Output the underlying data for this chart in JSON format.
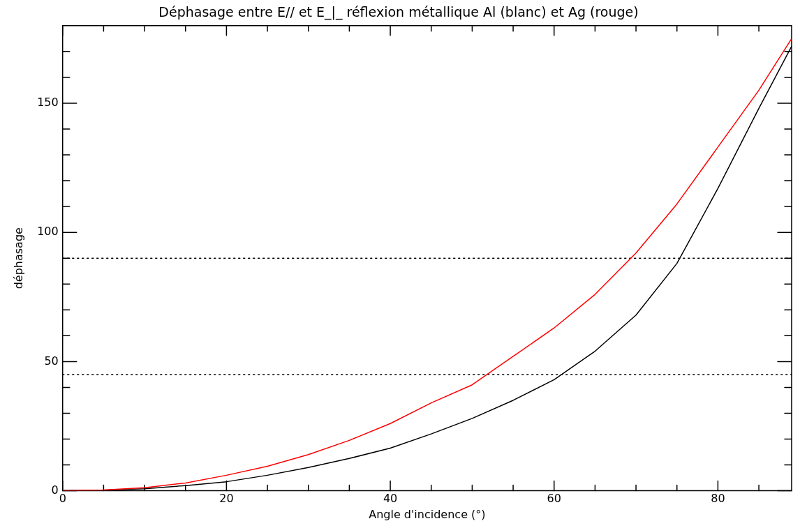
{
  "chart_data": {
    "type": "line",
    "title": "Déphasage entre E// et E_|_ réflexion métallique Al (blanc) et Ag (rouge)",
    "xlabel": "Angle d'incidence (°)",
    "ylabel": "déphasage",
    "xlim": [
      0,
      89
    ],
    "xticks": [
      0,
      {
        "value": 5,
        "label": null
      },
      {
        "value": 10,
        "label": null
      },
      {
        "value": 15,
        "label": null
      },
      20,
      {
        "value": 25,
        "label": null
      },
      {
        "value": 30,
        "label": null
      },
      {
        "value": 35,
        "label": null
      },
      40,
      {
        "value": 45,
        "label": null
      },
      {
        "value": 50,
        "label": null
      },
      {
        "value": 55,
        "label": null
      },
      60,
      {
        "value": 65,
        "label": null
      },
      {
        "value": 70,
        "label": null
      },
      {
        "value": 75,
        "label": null
      },
      80,
      {
        "value": 85,
        "label": null
      }
    ],
    "ylim": [
      0,
      180
    ],
    "yticks": [
      0,
      {
        "value": 10,
        "label": null
      },
      {
        "value": 20,
        "label": null
      },
      {
        "value": 30,
        "label": null
      },
      {
        "value": 40,
        "label": null
      },
      50,
      {
        "value": 60,
        "label": null
      },
      {
        "value": 70,
        "label": null
      },
      {
        "value": 80,
        "label": null
      },
      {
        "value": 90,
        "label": null
      },
      100,
      {
        "value": 110,
        "label": null
      },
      {
        "value": 120,
        "label": null
      },
      {
        "value": 130,
        "label": null
      },
      {
        "value": 140,
        "label": null
      },
      150,
      {
        "value": 160,
        "label": null
      },
      {
        "value": 170,
        "label": null
      }
    ],
    "x": [
      0,
      5,
      10,
      15,
      20,
      25,
      30,
      35,
      40,
      45,
      50,
      55,
      60,
      65,
      70,
      75,
      80,
      85,
      89
    ],
    "series": [
      {
        "color": "#ff0000",
        "values": [
          0,
          0.3,
          1.2,
          3,
          6,
          9.5,
          14,
          19.5,
          26,
          34,
          41,
          52,
          63,
          76,
          92,
          111,
          133,
          155,
          175
        ]
      },
      {
        "color": "#000000",
        "values": [
          0,
          0.2,
          0.8,
          2,
          3.5,
          6,
          9,
          12.5,
          16.5,
          22,
          28,
          35,
          43,
          54,
          68,
          88,
          117,
          148,
          172
        ]
      }
    ],
    "ref_lines": [
      {
        "axis": "y",
        "value": 90,
        "color": "#000000",
        "line_style": "dotted"
      },
      {
        "axis": "y",
        "value": 45,
        "color": "#000000",
        "line_style": "dotted"
      }
    ],
    "grid": false,
    "legend": false,
    "marker": "none",
    "line_style": "solid"
  }
}
